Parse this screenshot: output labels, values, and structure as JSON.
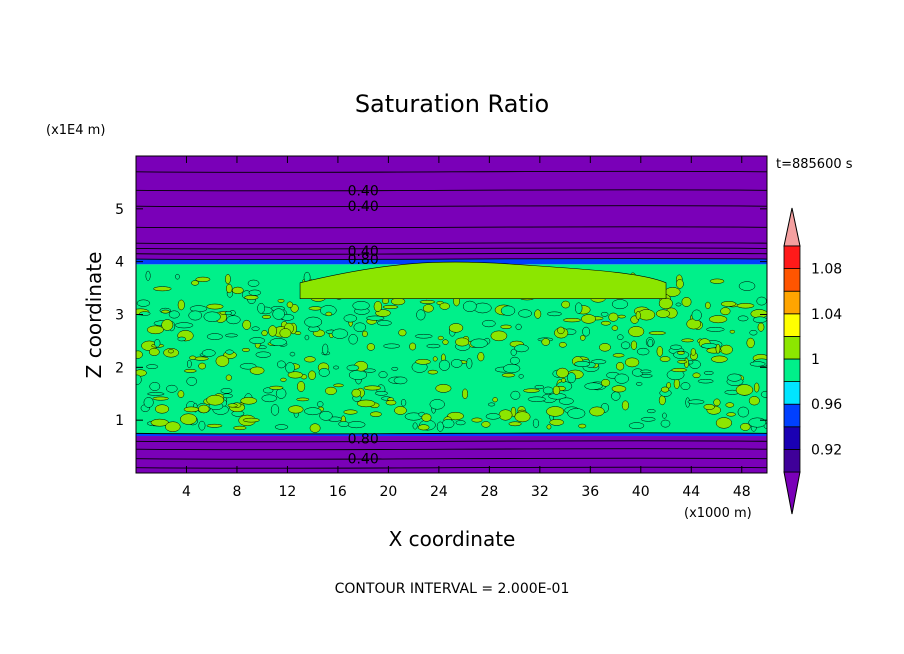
{
  "chart_data": {
    "type": "heatmap",
    "title": "Saturation Ratio",
    "xlabel": "X coordinate",
    "ylabel": "Z coordinate",
    "x_unit": "(x1000 m)",
    "y_unit": "(x1E4 m)",
    "time_label": "t=885600 s",
    "footer": "CONTOUR INTERVAL = 2.000E-01",
    "xlim": [
      0,
      50
    ],
    "ylim": [
      0,
      6
    ],
    "x_ticks": [
      "4",
      "8",
      "12",
      "16",
      "20",
      "24",
      "28",
      "32",
      "36",
      "40",
      "44",
      "48"
    ],
    "y_ticks": [
      "1",
      "2",
      "3",
      "4",
      "5"
    ],
    "colorbar": {
      "labels": [
        "0.92",
        "0.96",
        "1",
        "1.04",
        "1.08"
      ],
      "levels": [
        0.9,
        0.92,
        0.94,
        0.96,
        0.98,
        1.0,
        1.02,
        1.04,
        1.06,
        1.08,
        1.1
      ],
      "colors": [
        "#3f0099",
        "#1a00b3",
        "#0040ff",
        "#00e5ff",
        "#00f08a",
        "#8ce600",
        "#ffff00",
        "#ffa500",
        "#ff5500",
        "#ff1a1a"
      ],
      "under_color": "#7a00b8",
      "over_color": "#f4a0a0"
    },
    "bands": [
      {
        "z0": 0.0,
        "z1": 0.7,
        "value": 0.4
      },
      {
        "z0": 0.7,
        "z1": 0.75,
        "value": 0.95
      },
      {
        "z0": 0.75,
        "z1": 3.95,
        "value": 0.99
      },
      {
        "z0": 3.95,
        "z1": 4.05,
        "value": 0.95
      },
      {
        "z0": 4.05,
        "z1": 6.0,
        "value": 0.4
      }
    ],
    "contour_labels": [
      {
        "text": "0.40",
        "x": 18,
        "z": 5.35
      },
      {
        "text": "0.40",
        "x": 18,
        "z": 5.05
      },
      {
        "text": "0.40",
        "x": 18,
        "z": 4.2
      },
      {
        "text": "0.80",
        "x": 18,
        "z": 4.05
      },
      {
        "text": "0.80",
        "x": 18,
        "z": 0.65
      },
      {
        "text": "0.40",
        "x": 18,
        "z": 0.27
      }
    ]
  },
  "colors": {
    "purple": "#7a00b8",
    "green": "#00f08a",
    "yellowgreen": "#8ce600"
  }
}
